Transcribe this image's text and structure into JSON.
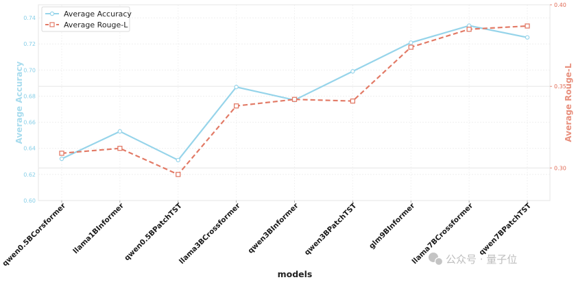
{
  "chart_data": {
    "type": "line",
    "categories": [
      "qwen0.5BCorsformer",
      "llama1BInformer",
      "qwen0.5BPatchTST",
      "llama3BCrossformer",
      "qwen3BInformer",
      "qwen3BPatchTST",
      "glm9BInformer",
      "llama7BCrossformer",
      "qwen7BPatchTST"
    ],
    "series": [
      {
        "name": "Average Accuracy",
        "axis": "left",
        "color": "#96d4ea",
        "marker": "circle",
        "linestyle": "solid",
        "values": [
          0.632,
          0.653,
          0.631,
          0.687,
          0.677,
          0.699,
          0.721,
          0.734,
          0.725
        ]
      },
      {
        "name": "Average Rouge-L",
        "axis": "right",
        "color": "#e27a66",
        "marker": "square",
        "linestyle": "dashed",
        "values": [
          0.309,
          0.312,
          0.296,
          0.338,
          0.342,
          0.341,
          0.374,
          0.385,
          0.387
        ]
      }
    ],
    "xlabel": "models",
    "ylabel_left": "Average Accuracy",
    "ylabel_right": "Average Rouge-L",
    "ylim_left": [
      0.6,
      0.75
    ],
    "ylim_right": [
      0.28,
      0.4
    ],
    "yticks_left": [
      "0.60",
      "0.62",
      "0.64",
      "0.66",
      "0.68",
      "0.70",
      "0.72",
      "0.74"
    ],
    "yticks_right": [
      "0.30",
      "0.35",
      "0.40"
    ],
    "ytick_values_right": [
      0.3,
      0.35,
      0.4
    ],
    "grid": true,
    "legend_position": "top-left"
  },
  "watermark": {
    "text": "公众号 · 量子位",
    "icon": "wechat-icon"
  }
}
